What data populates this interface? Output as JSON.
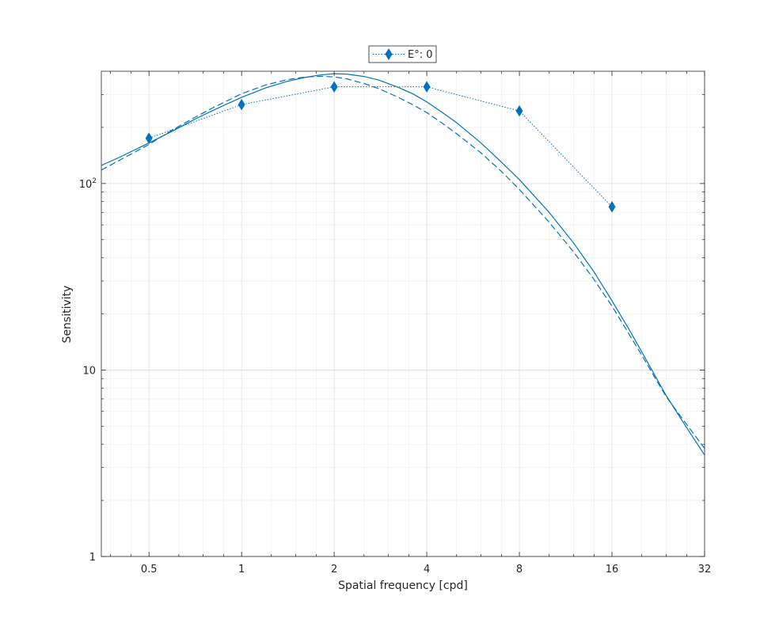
{
  "chart_data": {
    "type": "line",
    "xlabel": "Spatial frequency [cpd]",
    "ylabel": "Sensitivity",
    "xscale": "log2",
    "yscale": "log10",
    "xlim": [
      0.35,
      32
    ],
    "ylim": [
      1,
      400
    ],
    "grid": true,
    "minor_grid": true,
    "legend_position": "top-center",
    "x_ticks": [
      {
        "value": 0.5,
        "label": "0.5"
      },
      {
        "value": 1,
        "label": "1"
      },
      {
        "value": 2,
        "label": "2"
      },
      {
        "value": 4,
        "label": "4"
      },
      {
        "value": 8,
        "label": "8"
      },
      {
        "value": 16,
        "label": "16"
      },
      {
        "value": 32,
        "label": "32"
      }
    ],
    "y_ticks": [
      {
        "value": 1,
        "label": "1",
        "base": "",
        "exp": ""
      },
      {
        "value": 10,
        "label": "10",
        "base": "",
        "exp": ""
      },
      {
        "value": 100,
        "label": "",
        "base": "10",
        "exp": "2"
      }
    ],
    "colors": {
      "series": "#0072BD",
      "grid": "#e1e1e1",
      "axes": "#262626"
    },
    "series": [
      {
        "name": "E°: 0",
        "style": "dotted",
        "marker": "diamond",
        "x": [
          0.5,
          1,
          2,
          4,
          8,
          16
        ],
        "y": [
          175,
          265,
          330,
          330,
          245,
          75
        ]
      },
      {
        "style": "solid",
        "marker": "none",
        "x": [
          0.35,
          0.4,
          0.5,
          0.6,
          0.7,
          0.8,
          1,
          1.2,
          1.4,
          1.6,
          1.8,
          2,
          2.2,
          2.5,
          2.8,
          3.2,
          3.6,
          4,
          4.5,
          5,
          6,
          7,
          8,
          10,
          12,
          14,
          16,
          18,
          20,
          24,
          28,
          32
        ],
        "y": [
          125,
          138,
          165,
          192,
          220,
          245,
          290,
          326,
          352,
          370,
          382,
          388,
          386,
          375,
          358,
          330,
          303,
          274,
          240,
          212,
          165,
          130,
          105,
          70,
          48,
          33.5,
          23.5,
          17,
          12.5,
          7.3,
          4.9,
          3.5
        ]
      },
      {
        "style": "dashed",
        "marker": "none",
        "x": [
          0.35,
          0.4,
          0.5,
          0.6,
          0.7,
          0.8,
          1,
          1.2,
          1.4,
          1.6,
          1.8,
          2,
          2.2,
          2.5,
          2.8,
          3.2,
          3.6,
          4,
          4.5,
          5,
          6,
          7,
          8,
          10,
          12,
          14,
          16,
          18,
          20,
          24,
          28,
          32
        ],
        "y": [
          118,
          133,
          162,
          195,
          225,
          253,
          303,
          338,
          360,
          372,
          376,
          373,
          364,
          344,
          322,
          292,
          265,
          240,
          210,
          185,
          146,
          116,
          93,
          62,
          43,
          30.5,
          22,
          16,
          12,
          7.2,
          5.1,
          3.8
        ]
      }
    ]
  }
}
